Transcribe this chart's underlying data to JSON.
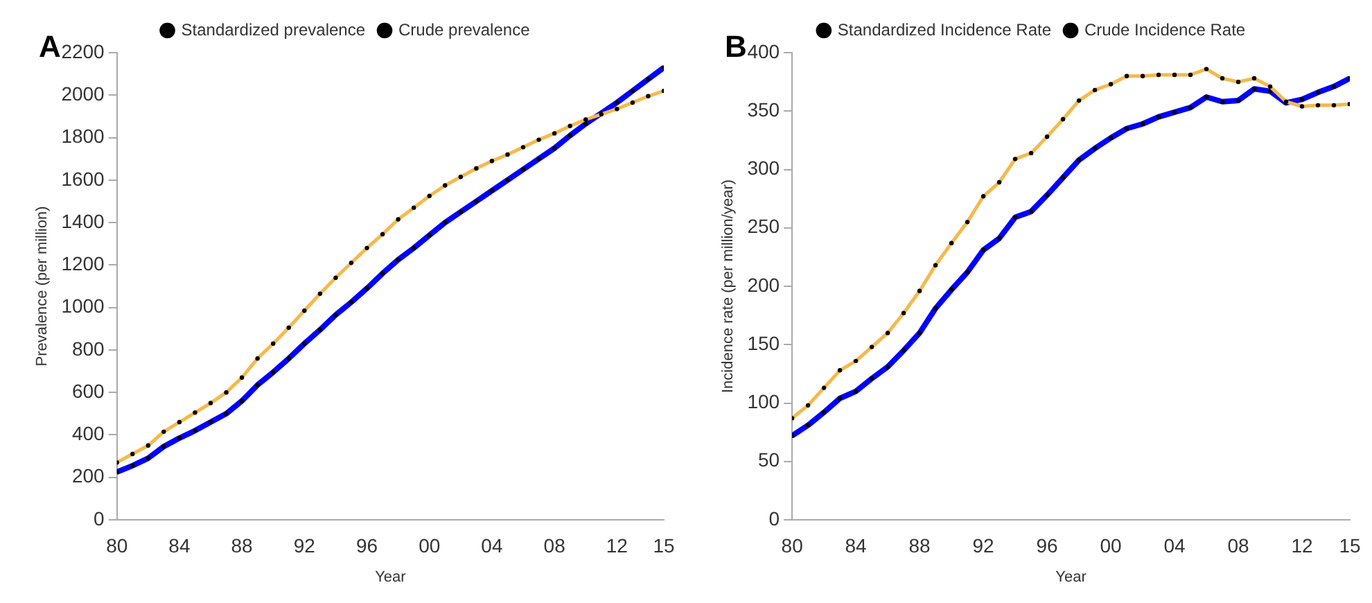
{
  "chart_data": [
    {
      "type": "line",
      "annotations": [
        "A"
      ],
      "xlabel": "Year",
      "ylabel": "Prevalence (per million)",
      "legend": "top",
      "marker": "circle",
      "line_style": "solid",
      "grid": false,
      "x": [
        1980,
        1981,
        1982,
        1983,
        1984,
        1985,
        1986,
        1987,
        1988,
        1989,
        1990,
        1991,
        1992,
        1993,
        1994,
        1995,
        1996,
        1997,
        1998,
        1999,
        2000,
        2001,
        2002,
        2003,
        2004,
        2005,
        2006,
        2007,
        2008,
        2009,
        2010,
        2011,
        2012,
        2013,
        2014,
        2015
      ],
      "xlim": [
        1980,
        2015
      ],
      "xticks": [
        {
          "value": 1980,
          "label": "80"
        },
        {
          "value": 1984,
          "label": "84"
        },
        {
          "value": 1988,
          "label": "88"
        },
        {
          "value": 1992,
          "label": "92"
        },
        {
          "value": 1996,
          "label": "96"
        },
        {
          "value": 2000,
          "label": "00"
        },
        {
          "value": 2004,
          "label": "04"
        },
        {
          "value": 2008,
          "label": "08"
        },
        {
          "value": 2012,
          "label": "12"
        },
        {
          "value": 2015,
          "label": "15"
        }
      ],
      "ylim": [
        0,
        2200
      ],
      "yticks": [
        0,
        200,
        400,
        600,
        800,
        1000,
        1200,
        1400,
        1600,
        1800,
        2000,
        2200
      ],
      "series": [
        {
          "name": "Standardized prevalence",
          "color": "#f5b94d",
          "values": [
            270,
            310,
            350,
            415,
            460,
            505,
            550,
            600,
            670,
            760,
            830,
            905,
            985,
            1065,
            1140,
            1210,
            1280,
            1345,
            1415,
            1470,
            1525,
            1575,
            1615,
            1655,
            1690,
            1720,
            1755,
            1790,
            1820,
            1855,
            1885,
            1910,
            1935,
            1965,
            1995,
            2020
          ]
        },
        {
          "name": "Crude prevalence",
          "color": "#0000ff",
          "values": [
            225,
            255,
            290,
            345,
            385,
            420,
            460,
            500,
            560,
            635,
            695,
            760,
            830,
            895,
            965,
            1025,
            1090,
            1160,
            1225,
            1280,
            1340,
            1400,
            1450,
            1500,
            1550,
            1600,
            1650,
            1700,
            1750,
            1810,
            1865,
            1915,
            1965,
            2020,
            2075,
            2130
          ]
        }
      ]
    },
    {
      "type": "line",
      "annotations": [
        "B"
      ],
      "xlabel": "Year",
      "ylabel": "Incidence rate (per million/year)",
      "legend": "top",
      "marker": "circle",
      "line_style": "solid",
      "grid": false,
      "x": [
        1980,
        1981,
        1982,
        1983,
        1984,
        1985,
        1986,
        1987,
        1988,
        1989,
        1990,
        1991,
        1992,
        1993,
        1994,
        1995,
        1996,
        1997,
        1998,
        1999,
        2000,
        2001,
        2002,
        2003,
        2004,
        2005,
        2006,
        2007,
        2008,
        2009,
        2010,
        2011,
        2012,
        2013,
        2014,
        2015
      ],
      "xlim": [
        1980,
        2015
      ],
      "xticks": [
        {
          "value": 1980,
          "label": "80"
        },
        {
          "value": 1984,
          "label": "84"
        },
        {
          "value": 1988,
          "label": "88"
        },
        {
          "value": 1992,
          "label": "92"
        },
        {
          "value": 1996,
          "label": "96"
        },
        {
          "value": 2000,
          "label": "00"
        },
        {
          "value": 2004,
          "label": "04"
        },
        {
          "value": 2008,
          "label": "08"
        },
        {
          "value": 2012,
          "label": "12"
        },
        {
          "value": 2015,
          "label": "15"
        }
      ],
      "ylim": [
        0,
        400
      ],
      "yticks": [
        0,
        50,
        100,
        150,
        200,
        250,
        300,
        350,
        400
      ],
      "series": [
        {
          "name": "Standardized Incidence Rate",
          "color": "#f5b94d",
          "values": [
            87,
            98,
            113,
            128,
            136,
            148,
            160,
            177,
            196,
            218,
            237,
            255,
            277,
            289,
            309,
            314,
            328,
            343,
            359,
            368,
            373,
            380,
            380,
            381,
            381,
            381,
            386,
            378,
            375,
            378,
            371,
            358,
            354,
            355,
            355,
            356
          ]
        },
        {
          "name": "Crude Incidence Rate",
          "color": "#0000ff",
          "values": [
            72,
            81,
            92,
            104,
            110,
            121,
            131,
            145,
            160,
            181,
            197,
            212,
            231,
            241,
            259,
            264,
            278,
            293,
            308,
            318,
            327,
            335,
            339,
            345,
            349,
            353,
            362,
            358,
            359,
            369,
            367,
            357,
            360,
            366,
            371,
            378
          ]
        }
      ]
    }
  ]
}
